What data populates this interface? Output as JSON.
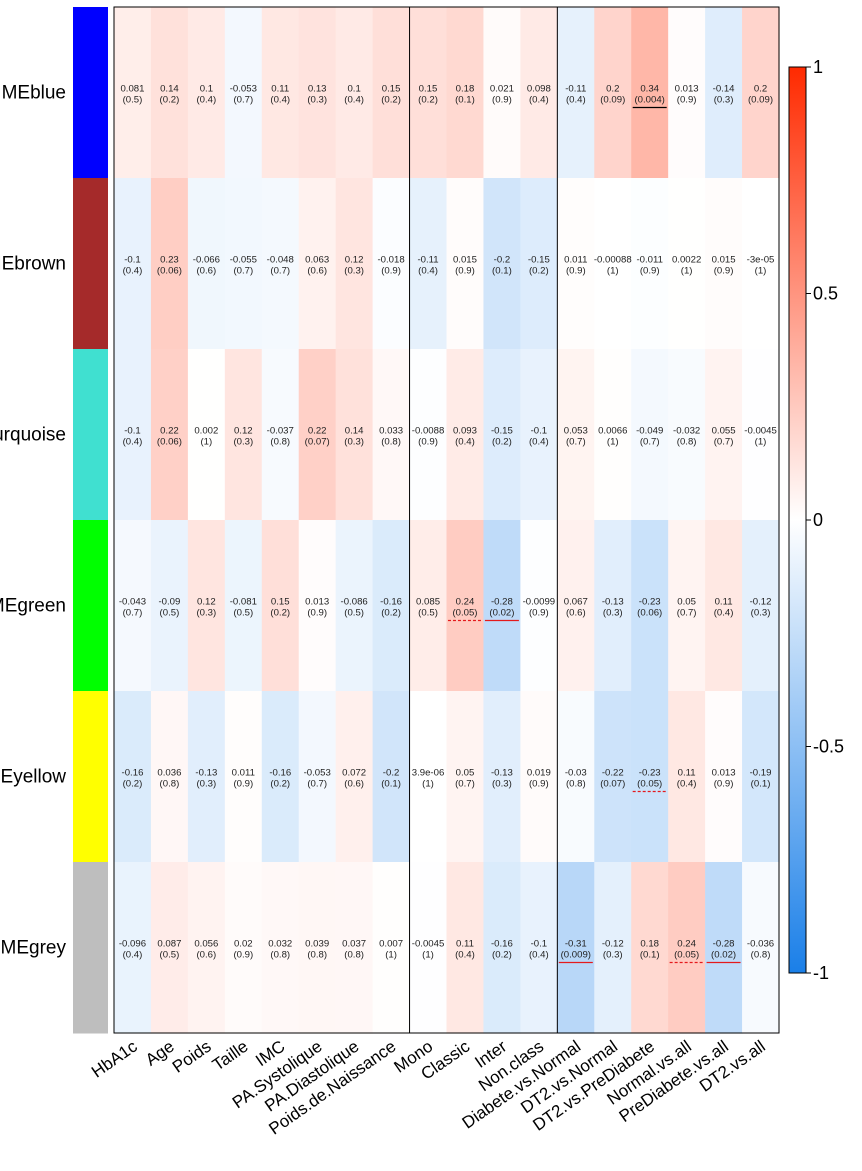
{
  "chart_data": {
    "type": "heatmap",
    "rows": [
      {
        "label": "MEblue",
        "color": "#0000ff"
      },
      {
        "label": "MEbrown",
        "color": "#a52a2a"
      },
      {
        "label": "MEturquoise",
        "color": "#40e0d0"
      },
      {
        "label": "MEgreen",
        "color": "#00ff00"
      },
      {
        "label": "MEyellow",
        "color": "#ffff00"
      },
      {
        "label": "MEgrey",
        "color": "#bebebe"
      }
    ],
    "columns": [
      "HbA1c",
      "Age",
      "Poids",
      "Taille",
      "IMC",
      "PA.Systolique",
      "PA.Diastolique",
      "Poids.de.Naissance",
      "Mono",
      "Classic",
      "Inter",
      "Non.class",
      "Diabete.vs.Normal",
      "DT2.vs.Normal",
      "DT2.vs.PreDiabete",
      "Normal.vs.all",
      "PreDiabete.vs.all",
      "DT2.vs.all"
    ],
    "values": [
      [
        0.081,
        0.14,
        0.1,
        -0.053,
        0.11,
        0.13,
        0.1,
        0.15,
        0.15,
        0.18,
        0.021,
        0.098,
        -0.11,
        0.2,
        0.34,
        0.013,
        -0.14,
        0.2
      ],
      [
        -0.1,
        0.23,
        -0.066,
        -0.055,
        -0.048,
        0.063,
        0.12,
        -0.018,
        -0.11,
        0.015,
        -0.2,
        -0.15,
        0.011,
        -0.00088,
        -0.011,
        0.0022,
        0.015,
        -3e-05
      ],
      [
        -0.1,
        0.22,
        0.002,
        0.12,
        -0.037,
        0.22,
        0.14,
        0.033,
        -0.0088,
        0.093,
        -0.15,
        -0.1,
        0.053,
        0.0066,
        -0.049,
        -0.032,
        0.055,
        -0.0045
      ],
      [
        -0.043,
        -0.09,
        0.12,
        -0.081,
        0.15,
        0.013,
        -0.086,
        -0.16,
        0.085,
        0.24,
        -0.28,
        -0.0099,
        0.067,
        -0.13,
        -0.23,
        0.05,
        0.11,
        -0.12
      ],
      [
        -0.16,
        0.036,
        -0.13,
        0.011,
        -0.16,
        -0.053,
        0.072,
        -0.2,
        3.9e-06,
        0.05,
        -0.13,
        0.019,
        -0.03,
        -0.22,
        -0.23,
        0.11,
        0.013,
        -0.19
      ],
      [
        -0.096,
        0.087,
        0.056,
        0.02,
        0.032,
        0.039,
        0.037,
        0.007,
        -0.0045,
        0.11,
        -0.16,
        -0.1,
        -0.31,
        -0.12,
        0.18,
        0.24,
        -0.28,
        -0.036
      ]
    ],
    "value_labels": [
      [
        "0.081",
        "0.14",
        "0.1",
        "-0.053",
        "0.11",
        "0.13",
        "0.1",
        "0.15",
        "0.15",
        "0.18",
        "0.021",
        "0.098",
        "-0.11",
        "0.2",
        "0.34",
        "0.013",
        "-0.14",
        "0.2"
      ],
      [
        "-0.1",
        "0.23",
        "-0.066",
        "-0.055",
        "-0.048",
        "0.063",
        "0.12",
        "-0.018",
        "-0.11",
        "0.015",
        "-0.2",
        "-0.15",
        "0.011",
        "-0.00088",
        "-0.011",
        "0.0022",
        "0.015",
        "-3e-05"
      ],
      [
        "-0.1",
        "0.22",
        "0.002",
        "0.12",
        "-0.037",
        "0.22",
        "0.14",
        "0.033",
        "-0.0088",
        "0.093",
        "-0.15",
        "-0.1",
        "0.053",
        "0.0066",
        "-0.049",
        "-0.032",
        "0.055",
        "-0.0045"
      ],
      [
        "-0.043",
        "-0.09",
        "0.12",
        "-0.081",
        "0.15",
        "0.013",
        "-0.086",
        "-0.16",
        "0.085",
        "0.24",
        "-0.28",
        "-0.0099",
        "0.067",
        "-0.13",
        "-0.23",
        "0.05",
        "0.11",
        "-0.12"
      ],
      [
        "-0.16",
        "0.036",
        "-0.13",
        "0.011",
        "-0.16",
        "-0.053",
        "0.072",
        "-0.2",
        "3.9e-06",
        "0.05",
        "-0.13",
        "0.019",
        "-0.03",
        "-0.22",
        "-0.23",
        "0.11",
        "0.013",
        "-0.19"
      ],
      [
        "-0.096",
        "0.087",
        "0.056",
        "0.02",
        "0.032",
        "0.039",
        "0.037",
        "0.007",
        "-0.0045",
        "0.11",
        "-0.16",
        "-0.1",
        "-0.31",
        "-0.12",
        "0.18",
        "0.24",
        "-0.28",
        "-0.036"
      ]
    ],
    "p_values": [
      [
        "(0.5)",
        "(0.2)",
        "(0.4)",
        "(0.7)",
        "(0.4)",
        "(0.3)",
        "(0.4)",
        "(0.2)",
        "(0.2)",
        "(0.1)",
        "(0.9)",
        "(0.4)",
        "(0.4)",
        "(0.09)",
        "(0.004)",
        "(0.9)",
        "(0.3)",
        "(0.09)"
      ],
      [
        "(0.4)",
        "(0.06)",
        "(0.6)",
        "(0.7)",
        "(0.7)",
        "(0.6)",
        "(0.3)",
        "(0.9)",
        "(0.4)",
        "(0.9)",
        "(0.1)",
        "(0.2)",
        "(0.9)",
        "(1)",
        "(0.9)",
        "(1)",
        "(0.9)",
        "(1)"
      ],
      [
        "(0.4)",
        "(0.06)",
        "(1)",
        "(0.3)",
        "(0.8)",
        "(0.07)",
        "(0.3)",
        "(0.8)",
        "(0.9)",
        "(0.4)",
        "(0.2)",
        "(0.4)",
        "(0.7)",
        "(1)",
        "(0.7)",
        "(0.8)",
        "(0.7)",
        "(1)"
      ],
      [
        "(0.7)",
        "(0.5)",
        "(0.3)",
        "(0.5)",
        "(0.2)",
        "(0.9)",
        "(0.5)",
        "(0.2)",
        "(0.5)",
        "(0.05)",
        "(0.02)",
        "(0.9)",
        "(0.6)",
        "(0.3)",
        "(0.06)",
        "(0.7)",
        "(0.4)",
        "(0.3)"
      ],
      [
        "(0.2)",
        "(0.8)",
        "(0.3)",
        "(0.9)",
        "(0.2)",
        "(0.7)",
        "(0.6)",
        "(0.1)",
        "(1)",
        "(0.7)",
        "(0.3)",
        "(0.9)",
        "(0.8)",
        "(0.07)",
        "(0.05)",
        "(0.4)",
        "(0.9)",
        "(0.1)"
      ],
      [
        "(0.4)",
        "(0.5)",
        "(0.6)",
        "(0.9)",
        "(0.8)",
        "(0.8)",
        "(0.8)",
        "(1)",
        "(1)",
        "(0.4)",
        "(0.2)",
        "(0.4)",
        "(0.009)",
        "(0.3)",
        "(0.1)",
        "(0.05)",
        "(0.02)",
        "(0.8)"
      ]
    ],
    "significance_markers": [
      {
        "row": 0,
        "col": 14,
        "style": "solid",
        "color": "#000000"
      },
      {
        "row": 3,
        "col": 9,
        "style": "dashed",
        "color": "#e41a1c"
      },
      {
        "row": 3,
        "col": 10,
        "style": "solid",
        "color": "#e41a1c"
      },
      {
        "row": 4,
        "col": 14,
        "style": "dashed",
        "color": "#e41a1c"
      },
      {
        "row": 5,
        "col": 12,
        "style": "solid",
        "color": "#e41a1c"
      },
      {
        "row": 5,
        "col": 15,
        "style": "dashed",
        "color": "#e41a1c"
      },
      {
        "row": 5,
        "col": 16,
        "style": "solid",
        "color": "#e41a1c"
      }
    ],
    "group_separators_after_col": [
      7,
      11
    ],
    "color_scale": {
      "min": -1,
      "max": 1,
      "low": "#1a7fe8",
      "mid": "#ffffff",
      "high": "#ff2a00",
      "ticks": [
        {
          "value": 1,
          "label": "1"
        },
        {
          "value": 0.5,
          "label": "0.5"
        },
        {
          "value": 0,
          "label": "0"
        },
        {
          "value": -0.5,
          "label": "-0.5"
        },
        {
          "value": -1,
          "label": "-1"
        }
      ]
    },
    "title": "",
    "xlabel": "",
    "ylabel": ""
  }
}
